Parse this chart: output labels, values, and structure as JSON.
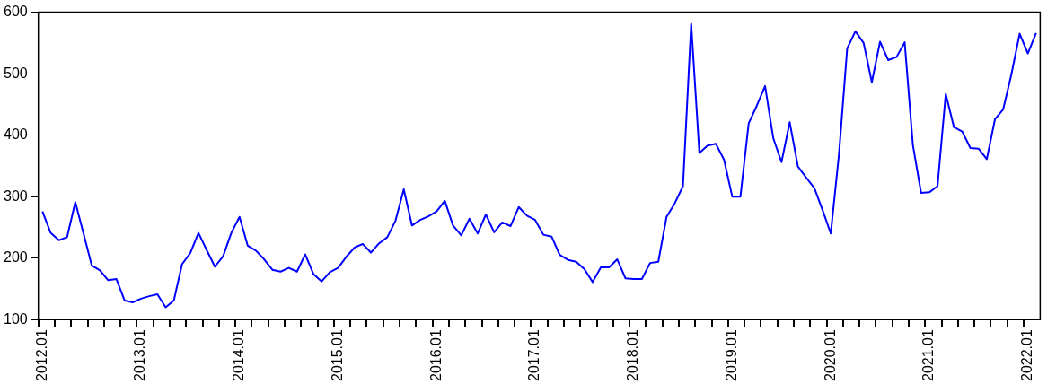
{
  "chart_data": {
    "type": "line",
    "categories": [
      "2012.01",
      null,
      null,
      null,
      null,
      null,
      null,
      null,
      null,
      null,
      null,
      null,
      "2013.01",
      null,
      null,
      null,
      null,
      null,
      null,
      null,
      null,
      null,
      null,
      null,
      "2014.01",
      null,
      null,
      null,
      null,
      null,
      null,
      null,
      null,
      null,
      null,
      null,
      "2015.01",
      null,
      null,
      null,
      null,
      null,
      null,
      null,
      null,
      null,
      null,
      null,
      "2016.01",
      null,
      null,
      null,
      null,
      null,
      null,
      null,
      null,
      null,
      null,
      null,
      "2017.01",
      null,
      null,
      null,
      null,
      null,
      null,
      null,
      null,
      null,
      null,
      null,
      "2018.01",
      null,
      null,
      null,
      null,
      null,
      null,
      null,
      null,
      null,
      null,
      null,
      "2019.01",
      null,
      null,
      null,
      null,
      null,
      null,
      null,
      null,
      null,
      null,
      null,
      "2020.01",
      null,
      null,
      null,
      null,
      null,
      null,
      null,
      null,
      null,
      null,
      null,
      "2021.01",
      null,
      null,
      null,
      null,
      null,
      null,
      null,
      null,
      null,
      null,
      null,
      "2022.01",
      null
    ],
    "series": [
      {
        "color": "#0000ff",
        "values": [
          276,
          241,
          229,
          234,
          291,
          240,
          188,
          180,
          164,
          166,
          131,
          128,
          134,
          138,
          141,
          120,
          131,
          190,
          208,
          241,
          213,
          186,
          203,
          241,
          267,
          220,
          212,
          198,
          181,
          178,
          184,
          178,
          206,
          174,
          162,
          177,
          184,
          202,
          217,
          223,
          209,
          224,
          234,
          261,
          312,
          253,
          262,
          268,
          276,
          293,
          253,
          237,
          264,
          240,
          271,
          242,
          258,
          252,
          283,
          269,
          262,
          238,
          235,
          205,
          197,
          194,
          182,
          161,
          185,
          185,
          198,
          167,
          166,
          166,
          192,
          194,
          267,
          289,
          317,
          581,
          371,
          383,
          386,
          360,
          300,
          300,
          419,
          448,
          480,
          395,
          356,
          421,
          349,
          331,
          314,
          278,
          240,
          369,
          541,
          569,
          550,
          486,
          552,
          522,
          527,
          551,
          384,
          306,
          307,
          317,
          467,
          413,
          406,
          379,
          378,
          361,
          426,
          442,
          499,
          565,
          533,
          566
        ]
      }
    ],
    "ylim": [
      100,
      600
    ],
    "yticks": [
      100,
      200,
      300,
      400,
      500,
      600
    ],
    "grid": false,
    "legend": false,
    "marker": "none",
    "line_style": "solid"
  }
}
